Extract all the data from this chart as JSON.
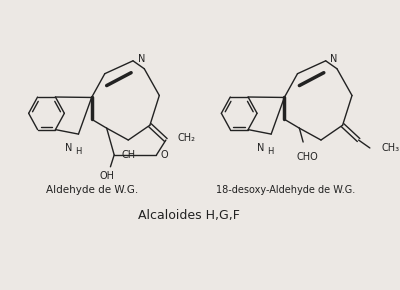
{
  "bg_color": "#ece8e4",
  "line_color": "#222222",
  "title": "Alcaloides H,G,F",
  "label1": "Aldehyde de W.G.",
  "label2": "18-desoxy-Aldehyde de W.G.",
  "fig_width": 4.0,
  "fig_height": 2.9,
  "dpi": 100
}
